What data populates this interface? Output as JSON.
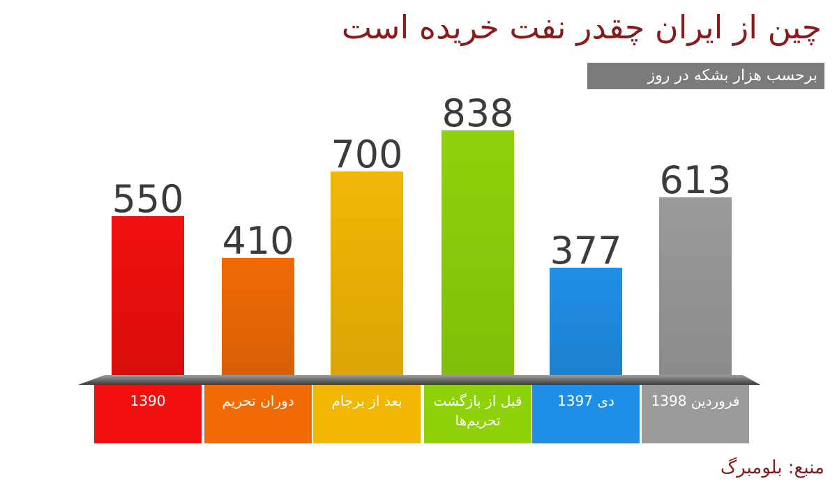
{
  "header": {
    "title": "چین از ایران چقدر نفت خریده است",
    "subtitle": "برحسب هزار بشکه در روز"
  },
  "footer": {
    "source": "منبع: بلومبرگ"
  },
  "chart_data": {
    "type": "bar",
    "title": "چین از ایران چقدر نفت خریده است",
    "subtitle": "برحسب هزار بشکه در روز",
    "categories": [
      "1390",
      "دوران تحریم",
      "بعد از برجام",
      "قبل از بازگشت تحریم‌ها",
      "دی 1397",
      "فروردین 1398"
    ],
    "values": [
      550,
      410,
      700,
      838,
      377,
      613
    ],
    "colors": [
      "#f10f0f",
      "#f06a06",
      "#f2b705",
      "#8fd20a",
      "#1f8ee6",
      "#9a9a9a"
    ],
    "ylim": [
      0,
      838
    ],
    "grid": false,
    "legend": "none"
  }
}
